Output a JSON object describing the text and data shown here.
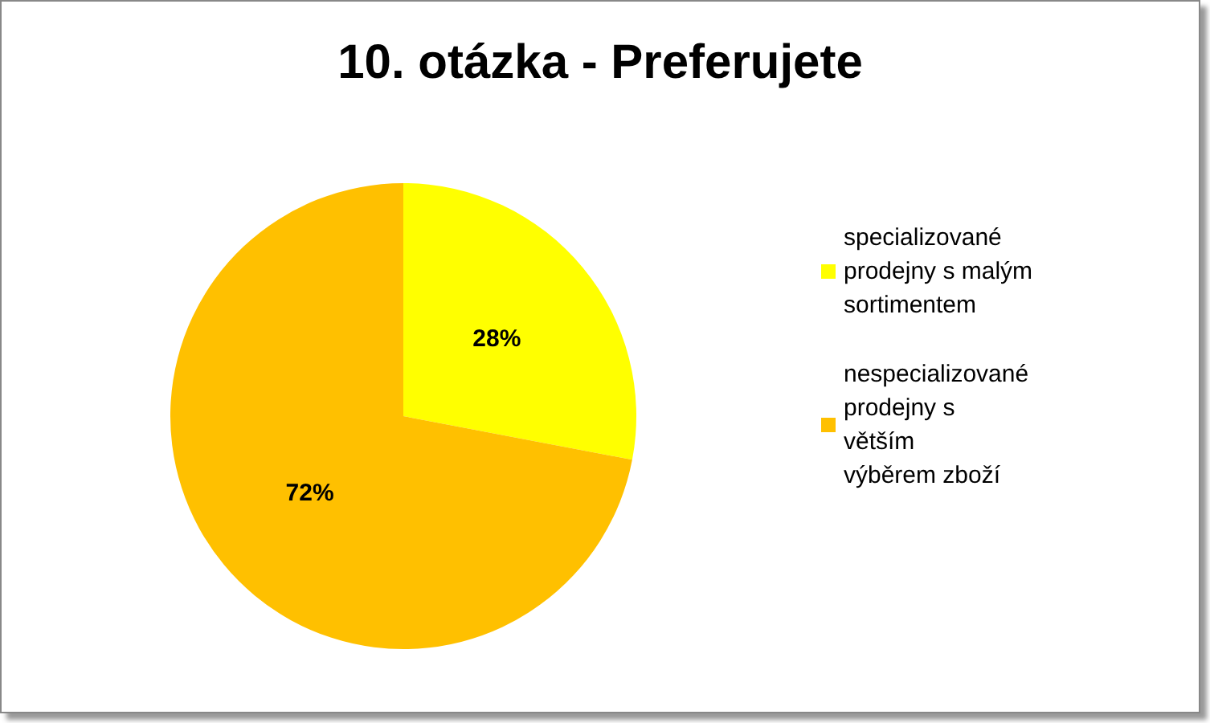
{
  "chart_data": {
    "type": "pie",
    "title": "10. otázka - Preferujete",
    "categories": [
      "specializované prodejny s malým sortimentem",
      "nespecializované prodejny s větším výběrem zboží"
    ],
    "values": [
      28,
      72
    ],
    "colors": [
      "#ffff00",
      "#ffc000"
    ],
    "value_labels": [
      "28%",
      "72%"
    ],
    "legend": "right"
  }
}
